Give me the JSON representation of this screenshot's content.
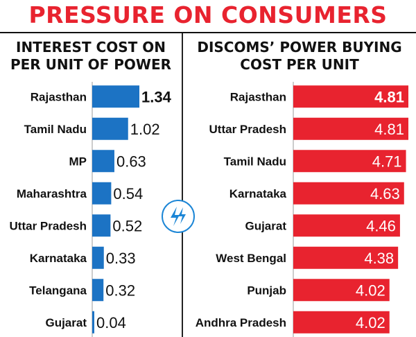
{
  "title": "PRESSURE ON CONSUMERS",
  "icon": "lightning-bolt-icon",
  "colors": {
    "title": "#e8232f",
    "left_bar": "#1c73c4",
    "right_bar": "#e8232f"
  },
  "chart_data": [
    {
      "type": "bar",
      "orientation": "horizontal",
      "title": "INTEREST COST ON\nPER UNIT OF POWER",
      "categories": [
        "Rajasthan",
        "Tamil Nadu",
        "MP",
        "Maharashtra",
        "Uttar Pradesh",
        "Karnataka",
        "Telangana",
        "Gujarat"
      ],
      "values": [
        1.34,
        1.02,
        0.63,
        0.54,
        0.52,
        0.33,
        0.32,
        0.04
      ],
      "labels": [
        "1.34",
        "1.02",
        "0.63",
        "0.54",
        "0.52",
        "0.33",
        "0.32",
        "0.04"
      ],
      "highlight_first": true,
      "value_labels": "outside",
      "color": "#1c73c4"
    },
    {
      "type": "bar",
      "orientation": "horizontal",
      "title": "DISCOMS’ POWER BUYING\nCOST PER UNIT",
      "categories": [
        "Rajasthan",
        "Uttar Pradesh",
        "Tamil Nadu",
        "Karnataka",
        "Gujarat",
        "West Bengal",
        "Punjab",
        "Andhra Pradesh"
      ],
      "values": [
        4.81,
        4.81,
        4.71,
        4.63,
        4.46,
        4.38,
        4.02,
        4.02
      ],
      "labels": [
        "4.81",
        "4.81",
        "4.71",
        "4.63",
        "4.46",
        "4.38",
        "4.02",
        "4.02"
      ],
      "highlight_first": true,
      "value_labels": "inside",
      "color": "#e8232f"
    }
  ]
}
